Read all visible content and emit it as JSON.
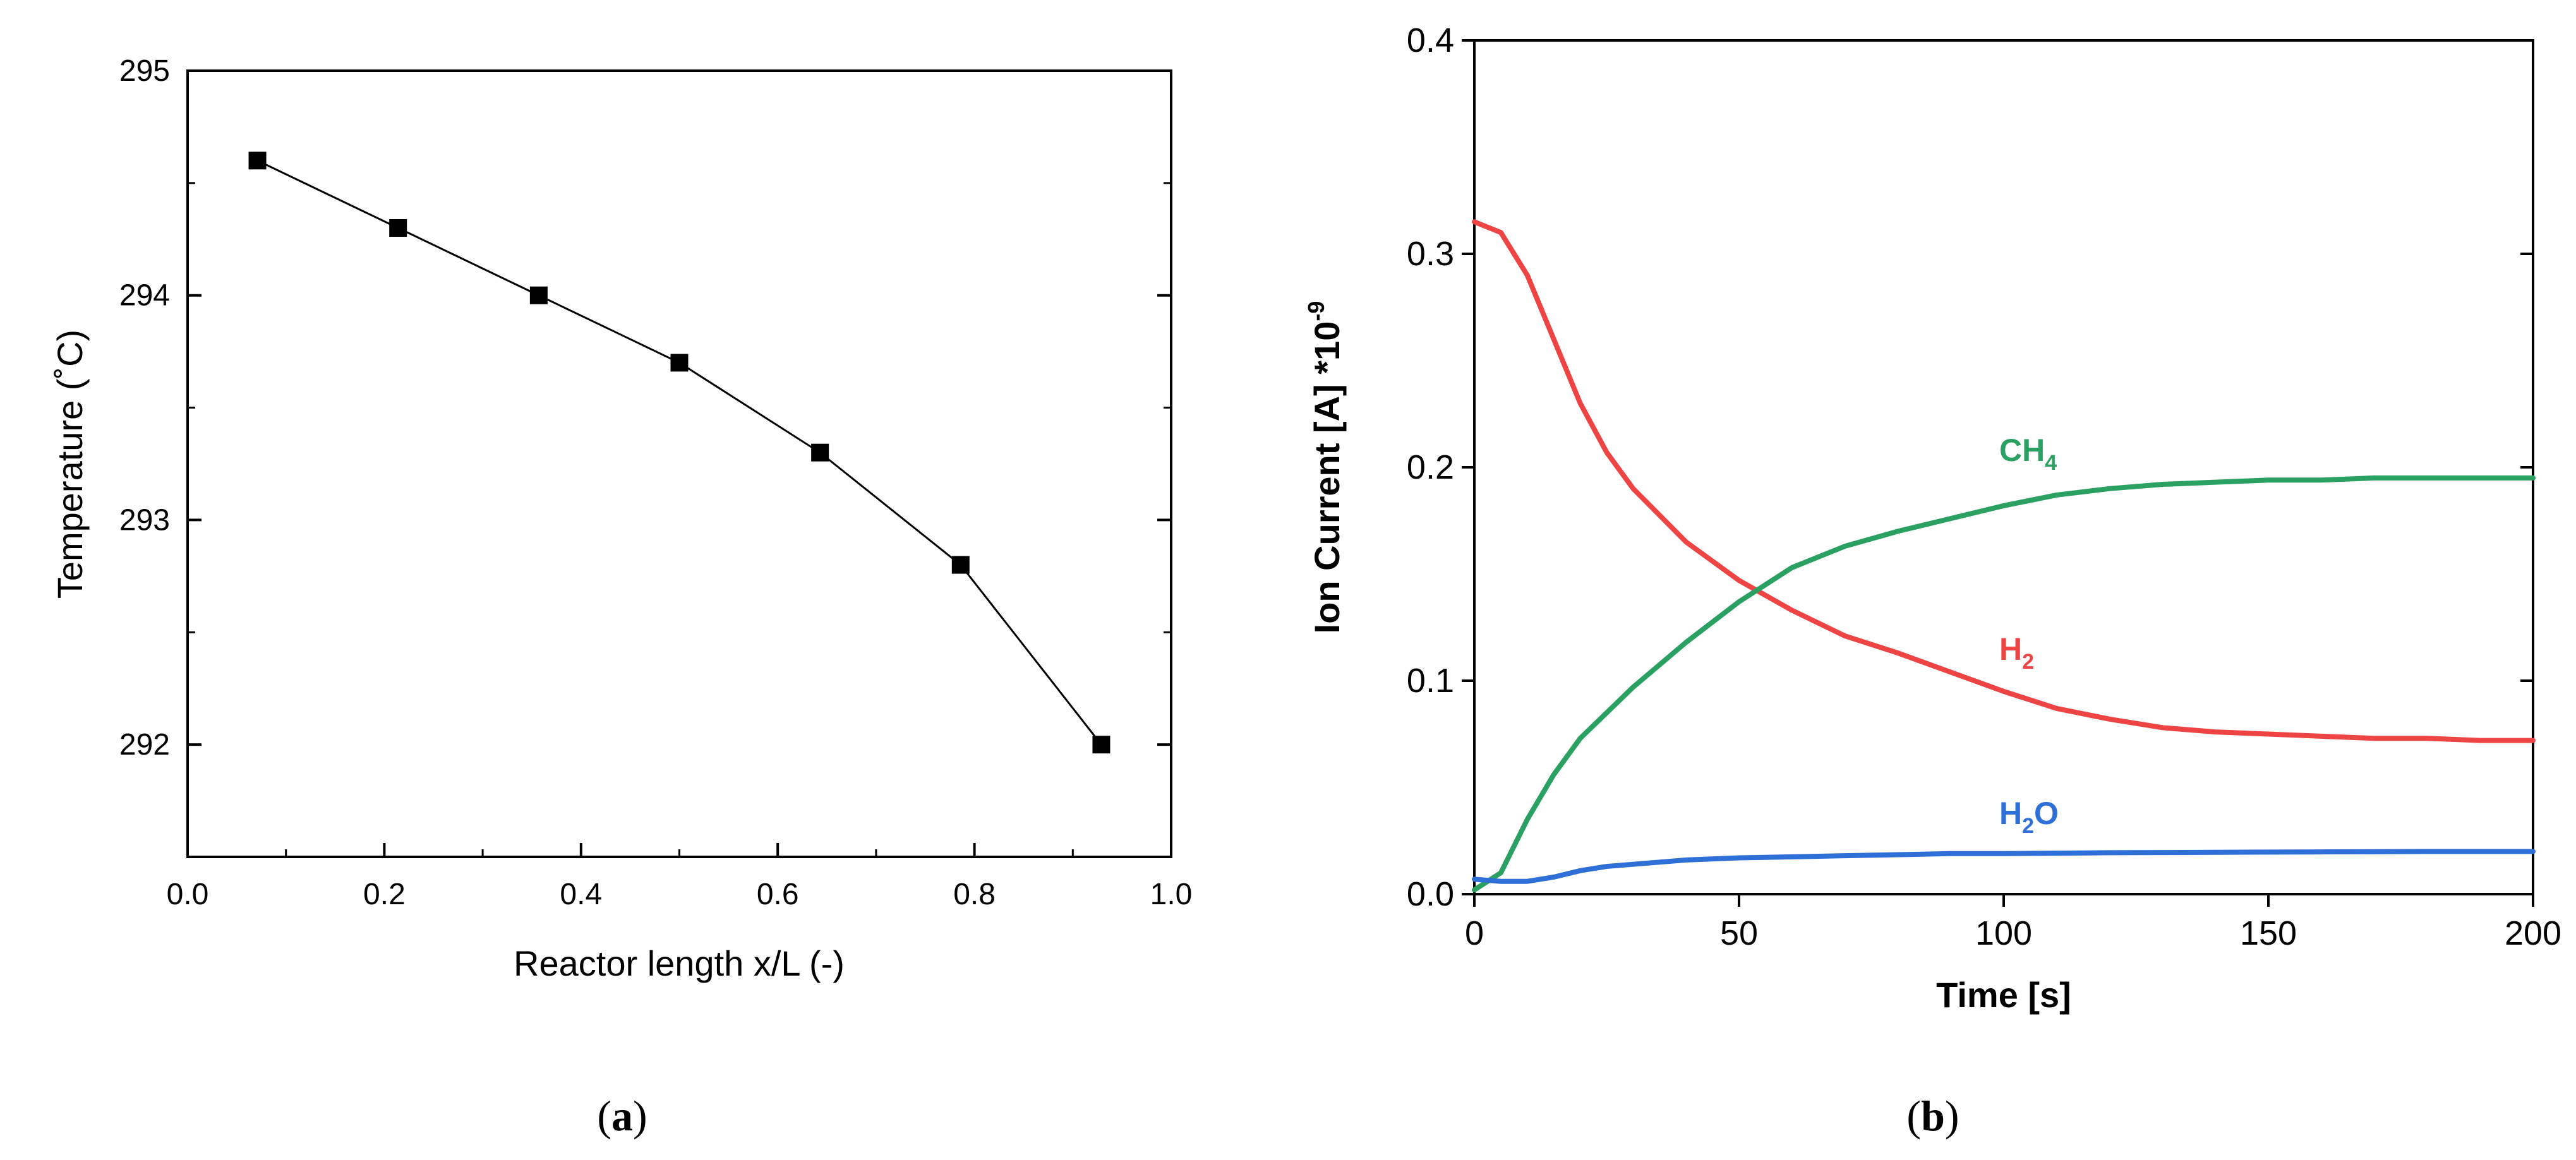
{
  "chart_data": [
    {
      "type": "line",
      "panel_label": "(a)",
      "panel_letter": "a",
      "xlabel": "Reactor length x/L (-)",
      "ylabel": "Temperature (˚C)",
      "xlim": [
        0.0,
        1.0
      ],
      "ylim": [
        291.5,
        295
      ],
      "xticks": [
        "0.0",
        "0.2",
        "0.4",
        "0.6",
        "0.8",
        "1.0"
      ],
      "yticks": [
        "292",
        "293",
        "294",
        "295"
      ],
      "marker": "square",
      "series": [
        {
          "name": "Temperature",
          "color": "#000000",
          "x": [
            0.071,
            0.214,
            0.357,
            0.5,
            0.643,
            0.786,
            0.929
          ],
          "y": [
            294.6,
            294.3,
            294.0,
            293.7,
            293.3,
            292.8,
            292.0
          ]
        }
      ]
    },
    {
      "type": "line",
      "panel_label": "(b)",
      "panel_letter": "b",
      "xlabel": "Time [s]",
      "ylabel": "Ion Current [A] *10",
      "ylabel_exp": "-9",
      "xlim": [
        0,
        200
      ],
      "ylim": [
        0.0,
        0.4
      ],
      "xticks": [
        "0",
        "50",
        "100",
        "150",
        "200"
      ],
      "yticks": [
        "0.0",
        "0.1",
        "0.2",
        "0.3",
        "0.4"
      ],
      "series": [
        {
          "name": "H2",
          "label_main": "H",
          "label_sub": "2",
          "color": "#ee4444",
          "x": [
            0,
            5,
            10,
            15,
            20,
            25,
            30,
            40,
            50,
            60,
            70,
            80,
            90,
            100,
            110,
            120,
            130,
            140,
            150,
            160,
            170,
            180,
            190,
            200
          ],
          "y": [
            0.315,
            0.31,
            0.29,
            0.26,
            0.23,
            0.207,
            0.19,
            0.165,
            0.147,
            0.133,
            0.121,
            0.113,
            0.104,
            0.095,
            0.087,
            0.082,
            0.078,
            0.076,
            0.075,
            0.074,
            0.073,
            0.073,
            0.072,
            0.072
          ]
        },
        {
          "name": "CH4",
          "label_main": "CH",
          "label_sub": "4",
          "color": "#2aa162",
          "x": [
            0,
            5,
            10,
            15,
            20,
            25,
            30,
            40,
            50,
            60,
            70,
            80,
            90,
            100,
            110,
            120,
            130,
            140,
            150,
            160,
            170,
            180,
            190,
            200
          ],
          "y": [
            0.002,
            0.01,
            0.035,
            0.056,
            0.073,
            0.085,
            0.097,
            0.118,
            0.137,
            0.153,
            0.163,
            0.17,
            0.176,
            0.182,
            0.187,
            0.19,
            0.192,
            0.193,
            0.194,
            0.194,
            0.195,
            0.195,
            0.195,
            0.195
          ]
        },
        {
          "name": "H2O",
          "label_main": "H",
          "label_sub": "2",
          "label_tail": "O",
          "color": "#2e6fd8",
          "x": [
            0,
            5,
            10,
            15,
            20,
            25,
            30,
            40,
            50,
            60,
            70,
            80,
            90,
            100,
            110,
            120,
            130,
            140,
            150,
            160,
            170,
            180,
            190,
            200
          ],
          "y": [
            0.007,
            0.006,
            0.006,
            0.008,
            0.011,
            0.013,
            0.014,
            0.016,
            0.017,
            0.0175,
            0.018,
            0.0185,
            0.019,
            0.019,
            0.0192,
            0.0194,
            0.0195,
            0.0196,
            0.0197,
            0.0198,
            0.0199,
            0.02,
            0.02,
            0.02
          ]
        }
      ]
    }
  ]
}
